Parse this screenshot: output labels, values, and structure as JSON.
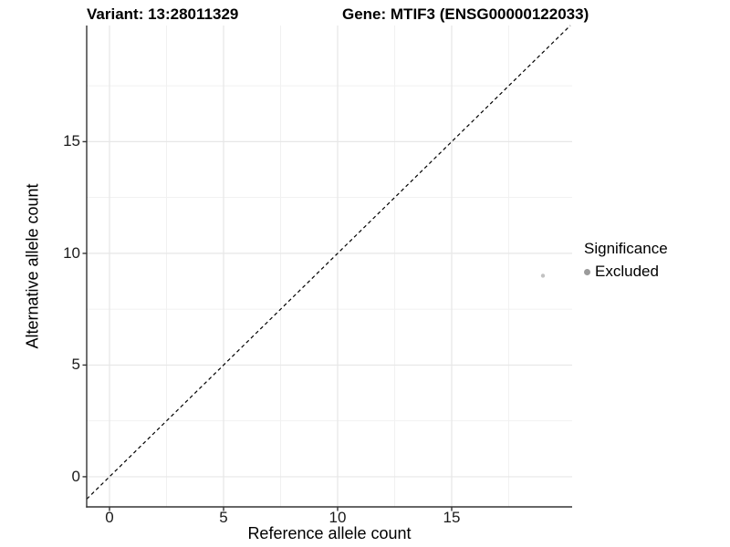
{
  "chart_data": {
    "type": "scatter",
    "titles": {
      "left": "Variant: 13:28011329",
      "right": "Gene: MTIF3 (ENSG00000122033)"
    },
    "xlabel": "Reference allele count",
    "ylabel": "Alternative allele count",
    "x_ticks": [
      0,
      5,
      10,
      15
    ],
    "y_ticks": [
      0,
      5,
      10,
      15
    ],
    "x_minor_ticks": [
      2.5,
      7.5,
      12.5,
      17.5
    ],
    "y_minor_ticks": [
      2.5,
      7.5,
      12.5,
      17.5
    ],
    "x_range": [
      -1.0,
      20.28
    ],
    "y_range": [
      -1.35,
      20.2
    ],
    "grid": true,
    "identity_line": {
      "shown": true,
      "style": "dashed",
      "color": "#000000"
    },
    "points": [
      {
        "x": 19,
        "y": 9,
        "significance": "Excluded"
      }
    ],
    "legend": {
      "title": "Significance",
      "position": "right",
      "entries": [
        {
          "label": "Excluded",
          "color": "#9b9b9b"
        }
      ]
    },
    "colors": {
      "point": "#c2c2c2",
      "grid_major": "#e7e7e7",
      "grid_minor": "#f1f1f1",
      "axis_line": "#333333",
      "tick_mark": "#333333",
      "background": "#ffffff"
    }
  }
}
